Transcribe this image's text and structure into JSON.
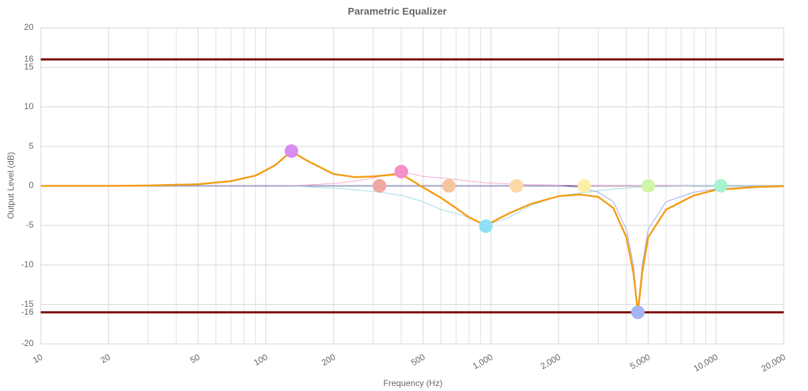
{
  "chart_data": {
    "type": "line",
    "title": "Parametric Equalizer",
    "x_label": "Frequency (Hz)",
    "y_label": "Output Level (dB)",
    "x_scale": "log",
    "xlim": [
      10,
      20000
    ],
    "ylim": [
      -20,
      20
    ],
    "xticks": [
      10,
      20,
      50,
      100,
      200,
      500,
      {
        "value": 1000,
        "label": "1,000"
      },
      {
        "value": 2000,
        "label": "2,000"
      },
      {
        "value": 5000,
        "label": "5,000"
      },
      {
        "value": 10000,
        "label": "10,000"
      },
      {
        "value": 20000,
        "label": "20,000"
      }
    ],
    "minor_xgrid": [
      30,
      40,
      60,
      70,
      80,
      90,
      300,
      400,
      600,
      700,
      800,
      900,
      3000,
      4000,
      6000,
      7000,
      8000,
      9000
    ],
    "yticks": [
      -20,
      -15,
      -10,
      -5,
      0,
      5,
      10,
      15,
      20
    ],
    "grid": true,
    "limits": [
      16,
      -16
    ],
    "limit_color": "#7b0000",
    "x": [
      10,
      20,
      30,
      50,
      70,
      90,
      110,
      130,
      150,
      200,
      250,
      300,
      400,
      500,
      600,
      700,
      800,
      950,
      1200,
      1500,
      2000,
      2500,
      3000,
      3500,
      4000,
      4300,
      4500,
      4700,
      5000,
      6000,
      8000,
      10000,
      15000,
      20000
    ],
    "series": [
      {
        "color": "#f4a7d0",
        "width": 1,
        "values": [
          0,
          0,
          0,
          0,
          0,
          0,
          0,
          0.05,
          0.1,
          0.3,
          0.6,
          1.0,
          1.8,
          1.2,
          1.0,
          0.8,
          0.6,
          0.4,
          0.25,
          0.15,
          0.1,
          0.05,
          0,
          0,
          0,
          0,
          0,
          0,
          0,
          0,
          0,
          0,
          0,
          0
        ]
      },
      {
        "color": "#9fdbe6",
        "width": 1,
        "values": [
          0,
          0,
          0,
          0,
          0,
          0,
          0,
          0,
          -0.1,
          -0.3,
          -0.5,
          -0.7,
          -1.2,
          -2.0,
          -3.0,
          -3.5,
          -4.0,
          -5.0,
          -4.0,
          -2.5,
          -1.3,
          -0.9,
          -0.6,
          -0.4,
          -0.3,
          -0.2,
          -0.2,
          -0.2,
          -0.1,
          -0.1,
          0,
          0,
          0,
          0
        ]
      },
      {
        "color": "#a0a8e0",
        "width": 1,
        "values": [
          0,
          0,
          0,
          0,
          0,
          0,
          0,
          0,
          0,
          0,
          0,
          0,
          0,
          0,
          0,
          0,
          0,
          0,
          0,
          0,
          0,
          -0.2,
          -0.8,
          -2.0,
          -5.5,
          -10,
          -16,
          -10,
          -5.5,
          -2.0,
          -0.8,
          -0.4,
          -0.1,
          -0.05
        ]
      },
      {
        "color": "#f39c12",
        "width": 2.5,
        "values": [
          0,
          0,
          0.05,
          0.2,
          0.6,
          1.3,
          2.6,
          4.4,
          3.3,
          1.5,
          1.1,
          1.2,
          1.5,
          -0.2,
          -1.5,
          -2.8,
          -4.0,
          -5.0,
          -3.5,
          -2.3,
          -1.3,
          -1.1,
          -1.4,
          -2.8,
          -6.5,
          -11,
          -16,
          -11,
          -6.5,
          -3.0,
          -1.2,
          -0.5,
          -0.15,
          -0.05
        ]
      }
    ],
    "bands": [
      {
        "x": 130,
        "y": 4.4,
        "color": "#d98cf2"
      },
      {
        "x": 320,
        "y": 0,
        "color": "#f2a6a0"
      },
      {
        "x": 400,
        "y": 1.8,
        "color": "#f48fc8"
      },
      {
        "x": 650,
        "y": 0,
        "color": "#f7c4a0"
      },
      {
        "x": 950,
        "y": -5.1,
        "color": "#8fe0f7"
      },
      {
        "x": 1300,
        "y": 0,
        "color": "#fbd9a8"
      },
      {
        "x": 2600,
        "y": 0,
        "color": "#fbf0a8"
      },
      {
        "x": 4500,
        "y": -16,
        "color": "#a5b4f7"
      },
      {
        "x": 5000,
        "y": 0,
        "color": "#d0f7a8"
      },
      {
        "x": 10500,
        "y": 0,
        "color": "#a8f2d0"
      }
    ]
  }
}
